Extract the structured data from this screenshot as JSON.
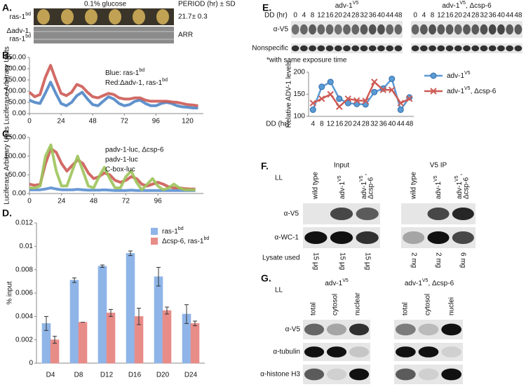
{
  "panel_labels": {
    "a": "A.",
    "b": "B.",
    "c": "C.",
    "d": "D.",
    "e": "E.",
    "f": "F.",
    "g": "G."
  },
  "panel_a": {
    "title": "0.1% glucose",
    "period_header": "PERIOD (hr) ± SD",
    "rows": [
      {
        "label": [
          [
            "ras-1",
            {
              "sup": "bd"
            }
          ]
        ],
        "period": "21.7± 0.3"
      },
      {
        "label": [
          "Δadv-1,",
          [
            "ras-1",
            {
              "sup": "bd"
            }
          ]
        ],
        "period": "ARR"
      }
    ]
  },
  "chart_data": [
    {
      "type": "line",
      "ylabel": "Luciferase Arbitrary Units",
      "x": [
        0,
        4,
        8,
        12,
        16,
        20,
        24,
        28,
        32,
        36,
        40,
        44,
        48,
        52,
        56,
        60,
        64,
        68,
        72,
        76,
        80,
        84,
        88,
        92,
        96,
        100,
        104,
        108,
        112,
        116,
        120,
        124,
        128
      ],
      "xlim": [
        0,
        132
      ],
      "xticks": [
        0,
        24,
        48,
        72,
        96,
        120
      ],
      "ylim": [
        0,
        250
      ],
      "yticks": [
        {
          "value": 0,
          "label": "0.00"
        },
        {
          "value": 50,
          "label": "50.00"
        },
        {
          "value": 100,
          "label": "100.00"
        },
        {
          "value": 150,
          "label": "150.00"
        },
        {
          "value": 200,
          "label": "200.00"
        },
        {
          "value": 250,
          "label": "250.00"
        }
      ],
      "series": [
        {
          "name": [
            "Blue: ras-1",
            {
              "sup": "bd"
            }
          ],
          "color": "#4f86c6",
          "values": [
            60,
            50,
            45,
            90,
            140,
            90,
            45,
            35,
            50,
            80,
            95,
            65,
            40,
            35,
            55,
            75,
            65,
            45,
            35,
            40,
            55,
            60,
            45,
            35,
            35,
            45,
            50,
            45,
            35,
            30,
            28,
            25,
            25
          ]
        },
        {
          "name": [
            "Red:Δadv-1, ras-1",
            {
              "sup": "bd"
            }
          ],
          "color": "#cd5b55",
          "values": [
            95,
            75,
            85,
            160,
            215,
            150,
            90,
            80,
            95,
            130,
            120,
            95,
            75,
            70,
            80,
            90,
            85,
            70,
            65,
            65,
            70,
            70,
            60,
            55,
            55,
            55,
            55,
            52,
            50,
            45,
            40,
            38,
            35
          ]
        }
      ]
    },
    {
      "type": "line",
      "ylabel": "Luciferase Arbitrary Units",
      "x": [
        0,
        4,
        8,
        12,
        16,
        20,
        24,
        28,
        32,
        36,
        40,
        44,
        48,
        52,
        56,
        60,
        64,
        68,
        72,
        76,
        80,
        84,
        88,
        92,
        96,
        100,
        104,
        108,
        112,
        116,
        120,
        124
      ],
      "xlim": [
        0,
        130
      ],
      "xticks": [
        0,
        24,
        48,
        72,
        96
      ],
      "ylim": [
        0,
        150
      ],
      "yticks": [
        {
          "value": 0,
          "label": "0.00"
        },
        {
          "value": 50,
          "label": "50.00"
        },
        {
          "value": 100,
          "label": "100.00"
        },
        {
          "value": 150,
          "label": "150.00"
        }
      ],
      "series": [
        {
          "name": "padv-1-luc, Δcsp-6",
          "color": "#5b8fd0",
          "values": [
            10,
            10,
            10,
            12,
            15,
            12,
            10,
            10,
            10,
            11,
            10,
            9,
            9,
            9,
            10,
            9,
            8,
            8,
            8,
            9,
            8,
            8,
            8,
            8,
            8,
            8,
            8,
            8,
            8,
            8,
            8,
            8
          ]
        },
        {
          "name": "padv-1-luc",
          "color": "#cd5b55",
          "values": [
            25,
            22,
            25,
            80,
            120,
            110,
            80,
            60,
            75,
            90,
            80,
            55,
            40,
            45,
            55,
            50,
            35,
            30,
            35,
            45,
            40,
            25,
            20,
            25,
            30,
            25,
            18,
            15,
            15,
            13,
            12,
            12
          ]
        },
        {
          "name": "C-box-luc",
          "color": "#9dc45b",
          "values": [
            15,
            15,
            20,
            100,
            130,
            60,
            20,
            20,
            60,
            100,
            60,
            20,
            15,
            45,
            70,
            40,
            15,
            15,
            45,
            60,
            30,
            10,
            25,
            40,
            20,
            10,
            15,
            25,
            15,
            10,
            10,
            10
          ]
        }
      ]
    },
    {
      "type": "bar",
      "ylabel": "% input",
      "categories": [
        "D4",
        "D8",
        "D12",
        "D16",
        "D20",
        "D24"
      ],
      "ylim": [
        0,
        0.012
      ],
      "yticks": [
        0,
        0.002,
        0.004,
        0.006,
        0.008,
        0.01,
        0.012
      ],
      "series": [
        {
          "name": [
            "ras-1",
            {
              "sup": "bd"
            }
          ],
          "color": "#8fb5e8",
          "values": [
            0.0034,
            0.0071,
            0.0083,
            0.0094,
            0.0074,
            0.0042
          ],
          "errors": [
            0.0006,
            0.0002,
            0.0001,
            0.0002,
            0.0008,
            0.0008
          ]
        },
        {
          "name": [
            "Δcsp-6, ras-1",
            {
              "sup": "bd"
            }
          ],
          "color": "#e88c88",
          "values": [
            0.002,
            0.0035,
            0.0043,
            0.004,
            0.0045,
            0.0034
          ],
          "errors": [
            0.0003,
            0,
            0.0003,
            0.0007,
            0.0003,
            0.0002
          ]
        }
      ]
    },
    {
      "type": "line",
      "ylabel": "Relative ADV-1 levels",
      "xlabel": "DD (hr)",
      "categories": [
        4,
        8,
        12,
        16,
        20,
        24,
        28,
        32,
        36,
        40,
        44,
        48
      ],
      "ylim": [
        100,
        200
      ],
      "yticks": [
        100,
        150,
        200
      ],
      "series": [
        {
          "name": [
            "adv-1",
            {
              "sup": "V5"
            }
          ],
          "color": "#5b9bd5",
          "marker": "circle",
          "values": [
            115,
            167,
            178,
            140,
            130,
            128,
            127,
            155,
            163,
            185,
            115,
            143
          ]
        },
        {
          "name": [
            "adv-1",
            {
              "sup": "V5"
            },
            ", Δcsp-6"
          ],
          "color": "#cd5b55",
          "marker": "x",
          "values": [
            130,
            140,
            150,
            122,
            140,
            136,
            135,
            178,
            160,
            160,
            130,
            140
          ]
        }
      ]
    }
  ],
  "panel_e_blot": {
    "groups": [
      [
        "adv-1",
        {
          "sup": "V5"
        }
      ],
      [
        "adv-1",
        {
          "sup": "V5"
        },
        ", Δcsp-6"
      ]
    ],
    "dd_label": "DD (hr)",
    "timepoints": [
      0,
      4,
      8,
      12,
      16,
      20,
      24,
      28,
      32,
      36,
      40,
      44,
      48
    ],
    "rows": [
      "α-V5",
      "Nonspecific"
    ],
    "note": "*with same exposure time"
  },
  "panel_f": {
    "condition": "LL",
    "groups": [
      "Input",
      "V5 IP"
    ],
    "lanes": [
      [
        "wild type"
      ],
      [
        [
          "adv-1",
          {
            "sup": "V5"
          }
        ]
      ],
      [
        [
          "adv-1",
          {
            "sup": "V5"
          },
          ","
        ],
        "Δcsp-6"
      ],
      [
        "wild type"
      ],
      [
        [
          "adv-1",
          {
            "sup": "V5"
          }
        ]
      ],
      [
        [
          "adv-1",
          {
            "sup": "V5"
          },
          ","
        ],
        "Δcsp-6"
      ]
    ],
    "rows": [
      "α-V5",
      "α-WC-1"
    ],
    "lysate_label": "Lysate used",
    "amounts": [
      "15 μg",
      "15 μg",
      "15 μg",
      "2 mg",
      "2 mg",
      "6 mg"
    ]
  },
  "panel_g": {
    "condition": "LL",
    "groups": [
      [
        "adv-1",
        {
          "sup": "V5"
        }
      ],
      [
        "adv-1",
        {
          "sup": "V5"
        },
        ", Δcsp-6"
      ]
    ],
    "lanes": [
      "total",
      "cytosol",
      "nuclear",
      "total",
      "cytosol",
      "nuclei"
    ],
    "rows": [
      "α-V5",
      "α-tubulin",
      "α-histone H3"
    ]
  }
}
